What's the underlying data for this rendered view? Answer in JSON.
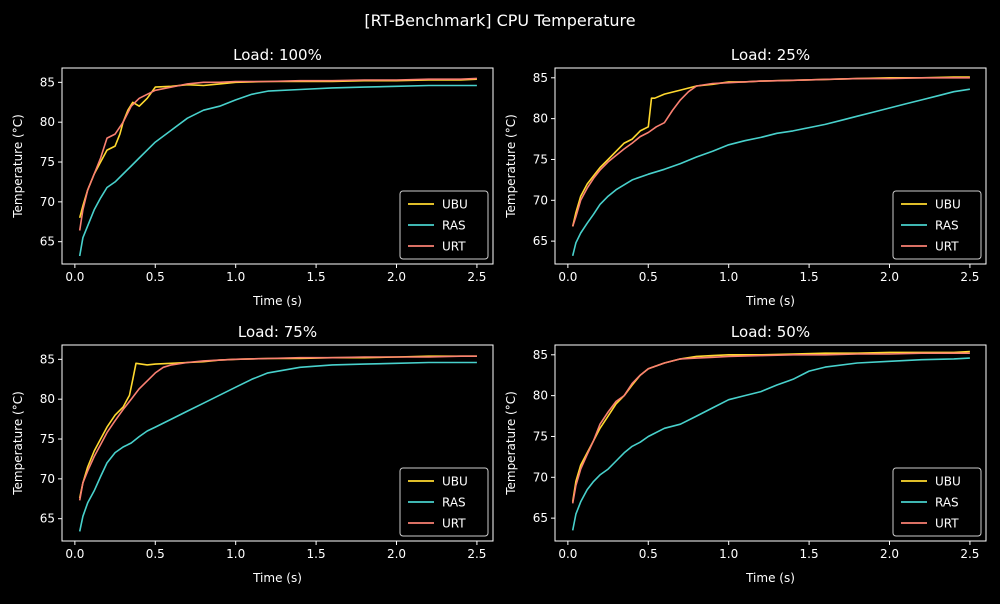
{
  "figure": {
    "title": "[RT-Benchmark] CPU Temperature",
    "background": "#000000",
    "foreground": "#ffffff"
  },
  "legend_labels": [
    "UBU",
    "RAS",
    "URT"
  ],
  "series_colors": {
    "UBU": "#ffd92f",
    "RAS": "#48d1cc",
    "URT": "#fa8072"
  },
  "chart_data": [
    {
      "type": "line",
      "title": "Load: 100%",
      "xlabel": "Time (s)",
      "ylabel": "Temperature (°C)",
      "xlim": [
        -0.08,
        2.6
      ],
      "ylim": [
        62.2,
        86.8
      ],
      "xticks": [
        0.0,
        0.5,
        1.0,
        1.5,
        2.0,
        2.5
      ],
      "yticks": [
        65,
        70,
        75,
        80,
        85
      ],
      "grid": false,
      "legend_position": "lower-right",
      "series": [
        {
          "name": "UBU",
          "color": "#ffd92f",
          "x": [
            0.03,
            0.05,
            0.08,
            0.12,
            0.16,
            0.2,
            0.25,
            0.28,
            0.3,
            0.33,
            0.36,
            0.4,
            0.45,
            0.5,
            0.6,
            0.7,
            0.8,
            0.9,
            1.0,
            1.2,
            1.4,
            1.6,
            1.8,
            2.0,
            2.2,
            2.4,
            2.5
          ],
          "y": [
            68.0,
            69.5,
            71.5,
            73.5,
            75.0,
            76.5,
            77.0,
            78.5,
            80.0,
            81.5,
            82.5,
            82.0,
            83.0,
            84.4,
            84.5,
            84.7,
            84.6,
            84.8,
            85.0,
            85.1,
            85.1,
            85.1,
            85.2,
            85.2,
            85.3,
            85.3,
            85.4
          ]
        },
        {
          "name": "RAS",
          "color": "#48d1cc",
          "x": [
            0.03,
            0.05,
            0.08,
            0.12,
            0.16,
            0.2,
            0.25,
            0.3,
            0.35,
            0.4,
            0.45,
            0.5,
            0.6,
            0.7,
            0.8,
            0.9,
            1.0,
            1.1,
            1.2,
            1.4,
            1.6,
            1.8,
            2.0,
            2.2,
            2.4,
            2.5
          ],
          "y": [
            63.2,
            65.5,
            67.0,
            69.0,
            70.5,
            71.8,
            72.5,
            73.5,
            74.5,
            75.5,
            76.5,
            77.5,
            79.0,
            80.5,
            81.5,
            82.0,
            82.8,
            83.5,
            83.9,
            84.1,
            84.3,
            84.4,
            84.5,
            84.6,
            84.6,
            84.6
          ]
        },
        {
          "name": "URT",
          "color": "#fa8072",
          "x": [
            0.03,
            0.05,
            0.08,
            0.12,
            0.16,
            0.2,
            0.25,
            0.3,
            0.35,
            0.4,
            0.45,
            0.5,
            0.6,
            0.7,
            0.8,
            0.9,
            1.0,
            1.2,
            1.4,
            1.6,
            1.8,
            2.0,
            2.2,
            2.4,
            2.5
          ],
          "y": [
            66.4,
            69.0,
            71.5,
            73.5,
            75.5,
            78.0,
            78.5,
            80.0,
            82.0,
            83.0,
            83.5,
            84.0,
            84.4,
            84.8,
            85.0,
            85.0,
            85.1,
            85.1,
            85.2,
            85.2,
            85.3,
            85.3,
            85.4,
            85.4,
            85.5
          ]
        }
      ]
    },
    {
      "type": "line",
      "title": "Load: 25%",
      "xlabel": "Time (s)",
      "ylabel": "Temperature (°C)",
      "xlim": [
        -0.08,
        2.6
      ],
      "ylim": [
        62.2,
        86.2
      ],
      "xticks": [
        0.0,
        0.5,
        1.0,
        1.5,
        2.0,
        2.5
      ],
      "yticks": [
        65,
        70,
        75,
        80,
        85
      ],
      "grid": false,
      "legend_position": "lower-right",
      "series": [
        {
          "name": "UBU",
          "color": "#ffd92f",
          "x": [
            0.03,
            0.05,
            0.08,
            0.12,
            0.16,
            0.2,
            0.25,
            0.3,
            0.35,
            0.4,
            0.45,
            0.5,
            0.52,
            0.54,
            0.6,
            0.7,
            0.8,
            0.9,
            1.0,
            1.1,
            1.2,
            1.4,
            1.6,
            1.8,
            2.0,
            2.2,
            2.4,
            2.5
          ],
          "y": [
            66.8,
            68.5,
            70.5,
            72.0,
            73.0,
            74.0,
            75.0,
            76.0,
            77.0,
            77.5,
            78.5,
            79.0,
            82.5,
            82.5,
            83.0,
            83.5,
            84.0,
            84.2,
            84.5,
            84.5,
            84.6,
            84.7,
            84.8,
            84.9,
            85.0,
            85.0,
            85.1,
            85.1
          ]
        },
        {
          "name": "RAS",
          "color": "#48d1cc",
          "x": [
            0.03,
            0.05,
            0.08,
            0.12,
            0.16,
            0.2,
            0.25,
            0.3,
            0.4,
            0.5,
            0.6,
            0.7,
            0.8,
            0.9,
            1.0,
            1.1,
            1.2,
            1.3,
            1.4,
            1.5,
            1.6,
            1.7,
            1.8,
            1.9,
            2.0,
            2.1,
            2.2,
            2.3,
            2.4,
            2.5
          ],
          "y": [
            63.2,
            64.8,
            66.0,
            67.2,
            68.3,
            69.5,
            70.5,
            71.3,
            72.5,
            73.2,
            73.8,
            74.5,
            75.3,
            76.0,
            76.8,
            77.3,
            77.7,
            78.2,
            78.5,
            78.9,
            79.3,
            79.8,
            80.3,
            80.8,
            81.3,
            81.8,
            82.3,
            82.8,
            83.3,
            83.6
          ]
        },
        {
          "name": "URT",
          "color": "#fa8072",
          "x": [
            0.03,
            0.05,
            0.08,
            0.12,
            0.16,
            0.2,
            0.25,
            0.3,
            0.35,
            0.4,
            0.45,
            0.5,
            0.55,
            0.6,
            0.65,
            0.7,
            0.75,
            0.8,
            0.9,
            1.0,
            1.2,
            1.4,
            1.6,
            1.8,
            2.0,
            2.2,
            2.4,
            2.5
          ],
          "y": [
            66.8,
            68.0,
            70.0,
            71.5,
            72.7,
            73.7,
            74.7,
            75.5,
            76.3,
            77.0,
            77.8,
            78.3,
            79.0,
            79.5,
            81.0,
            82.3,
            83.3,
            84.0,
            84.3,
            84.4,
            84.6,
            84.7,
            84.8,
            84.9,
            84.9,
            85.0,
            85.0,
            85.0
          ]
        }
      ]
    },
    {
      "type": "line",
      "title": "Load: 75%",
      "xlabel": "Time (s)",
      "ylabel": "Temperature (°C)",
      "xlim": [
        -0.08,
        2.6
      ],
      "ylim": [
        62.2,
        86.8
      ],
      "xticks": [
        0.0,
        0.5,
        1.0,
        1.5,
        2.0,
        2.5
      ],
      "yticks": [
        65,
        70,
        75,
        80,
        85
      ],
      "grid": false,
      "legend_position": "lower-right",
      "series": [
        {
          "name": "UBU",
          "color": "#ffd92f",
          "x": [
            0.03,
            0.05,
            0.08,
            0.12,
            0.16,
            0.2,
            0.25,
            0.3,
            0.34,
            0.36,
            0.38,
            0.45,
            0.5,
            0.6,
            0.7,
            0.8,
            0.9,
            1.0,
            1.2,
            1.4,
            1.6,
            1.8,
            2.0,
            2.2,
            2.4,
            2.5
          ],
          "y": [
            67.6,
            69.5,
            71.5,
            73.5,
            75.0,
            76.5,
            78.0,
            79.0,
            80.5,
            82.5,
            84.5,
            84.3,
            84.4,
            84.5,
            84.6,
            84.7,
            84.9,
            85.0,
            85.1,
            85.1,
            85.2,
            85.2,
            85.3,
            85.4,
            85.4,
            85.4
          ]
        },
        {
          "name": "RAS",
          "color": "#48d1cc",
          "x": [
            0.03,
            0.05,
            0.08,
            0.12,
            0.16,
            0.2,
            0.25,
            0.3,
            0.35,
            0.4,
            0.45,
            0.5,
            0.6,
            0.7,
            0.8,
            0.9,
            1.0,
            1.1,
            1.2,
            1.4,
            1.6,
            1.8,
            2.0,
            2.2,
            2.4,
            2.5
          ],
          "y": [
            63.4,
            65.3,
            67.0,
            68.5,
            70.3,
            72.0,
            73.3,
            74.0,
            74.5,
            75.3,
            76.0,
            76.5,
            77.5,
            78.5,
            79.5,
            80.5,
            81.5,
            82.5,
            83.3,
            84.0,
            84.3,
            84.4,
            84.5,
            84.6,
            84.6,
            84.6
          ]
        },
        {
          "name": "URT",
          "color": "#fa8072",
          "x": [
            0.03,
            0.05,
            0.08,
            0.12,
            0.16,
            0.2,
            0.25,
            0.3,
            0.35,
            0.4,
            0.45,
            0.5,
            0.55,
            0.6,
            0.7,
            0.8,
            0.9,
            1.0,
            1.2,
            1.4,
            1.6,
            1.8,
            2.0,
            2.2,
            2.4,
            2.5
          ],
          "y": [
            67.3,
            69.5,
            71.0,
            72.8,
            74.3,
            75.8,
            77.3,
            78.7,
            80.0,
            81.3,
            82.3,
            83.3,
            84.0,
            84.3,
            84.6,
            84.8,
            84.9,
            85.0,
            85.1,
            85.2,
            85.2,
            85.3,
            85.3,
            85.3,
            85.4,
            85.4
          ]
        }
      ]
    },
    {
      "type": "line",
      "title": "Load: 50%",
      "xlabel": "Time (s)",
      "ylabel": "Temperature (°C)",
      "xlim": [
        -0.08,
        2.6
      ],
      "ylim": [
        62.2,
        86.2
      ],
      "xticks": [
        0.0,
        0.5,
        1.0,
        1.5,
        2.0,
        2.5
      ],
      "yticks": [
        65,
        70,
        75,
        80,
        85
      ],
      "grid": false,
      "legend_position": "lower-right",
      "series": [
        {
          "name": "UBU",
          "color": "#ffd92f",
          "x": [
            0.03,
            0.05,
            0.08,
            0.12,
            0.16,
            0.2,
            0.25,
            0.3,
            0.35,
            0.4,
            0.45,
            0.5,
            0.6,
            0.7,
            0.8,
            0.9,
            1.0,
            1.2,
            1.4,
            1.6,
            1.8,
            2.0,
            2.2,
            2.4,
            2.5
          ],
          "y": [
            67.0,
            69.5,
            71.5,
            73.0,
            74.5,
            76.0,
            77.5,
            79.0,
            80.0,
            81.3,
            82.5,
            83.3,
            84.0,
            84.5,
            84.8,
            84.9,
            85.0,
            85.0,
            85.1,
            85.2,
            85.2,
            85.3,
            85.3,
            85.3,
            85.4
          ]
        },
        {
          "name": "RAS",
          "color": "#48d1cc",
          "x": [
            0.03,
            0.05,
            0.08,
            0.12,
            0.16,
            0.2,
            0.25,
            0.3,
            0.35,
            0.4,
            0.45,
            0.5,
            0.6,
            0.7,
            0.8,
            0.9,
            1.0,
            1.1,
            1.2,
            1.3,
            1.4,
            1.5,
            1.6,
            1.8,
            2.0,
            2.2,
            2.4,
            2.5
          ],
          "y": [
            63.5,
            65.5,
            67.0,
            68.5,
            69.5,
            70.3,
            71.0,
            72.0,
            73.0,
            73.8,
            74.3,
            75.0,
            76.0,
            76.5,
            77.5,
            78.5,
            79.5,
            80.0,
            80.5,
            81.3,
            82.0,
            83.0,
            83.5,
            84.0,
            84.2,
            84.4,
            84.5,
            84.6
          ]
        },
        {
          "name": "URT",
          "color": "#fa8072",
          "x": [
            0.03,
            0.05,
            0.08,
            0.12,
            0.16,
            0.2,
            0.25,
            0.3,
            0.35,
            0.4,
            0.45,
            0.5,
            0.6,
            0.7,
            0.8,
            0.9,
            1.0,
            1.2,
            1.4,
            1.6,
            1.8,
            2.0,
            2.2,
            2.4,
            2.5
          ],
          "y": [
            66.8,
            69.0,
            71.0,
            72.8,
            74.5,
            76.5,
            78.0,
            79.3,
            80.0,
            81.5,
            82.5,
            83.3,
            84.0,
            84.5,
            84.6,
            84.7,
            84.8,
            84.9,
            85.0,
            85.0,
            85.1,
            85.1,
            85.2,
            85.2,
            85.2
          ]
        }
      ]
    }
  ]
}
